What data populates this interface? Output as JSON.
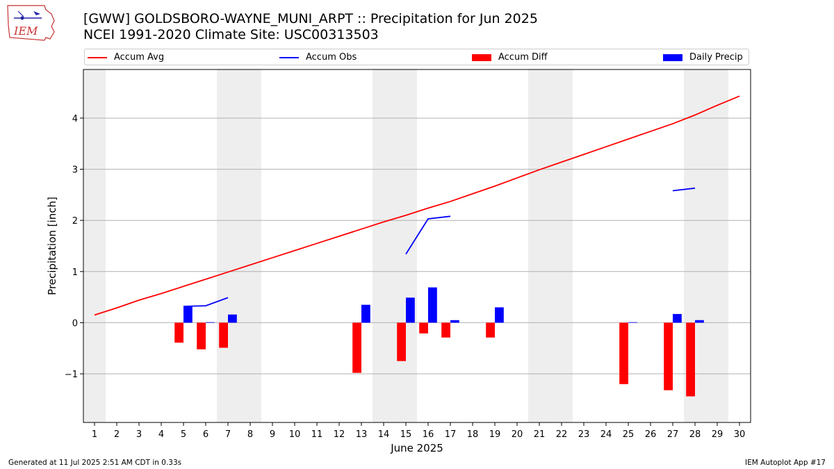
{
  "logo_text": "IEM",
  "title": "[GWW] GOLDSBORO-WAYNE_MUNI_ARPT :: Precipitation for Jun 2025",
  "subtitle": "NCEI 1991-2020 Climate Site: USC00313503",
  "legend": [
    {
      "label": "Accum Avg",
      "kind": "line",
      "color": "#ff0000"
    },
    {
      "label": "Accum Obs",
      "kind": "line",
      "color": "#0000ff"
    },
    {
      "label": "Accum Diff",
      "kind": "box",
      "color": "#ff0000"
    },
    {
      "label": "Daily Precip",
      "kind": "box",
      "color": "#0000ff"
    }
  ],
  "footer": {
    "left": "Generated at 11 Jul 2025 2:51 AM CDT in 0.33s",
    "right": "IEM Autoplot App #17"
  },
  "chart_data": {
    "type": "bar",
    "xlabel": "June 2025",
    "ylabel": "Precipitation [inch]",
    "xlim": [
      0.5,
      30.5
    ],
    "ylim": [
      -1.95,
      4.95
    ],
    "x_ticks": [
      1,
      2,
      3,
      4,
      5,
      6,
      7,
      8,
      9,
      10,
      11,
      12,
      13,
      14,
      15,
      16,
      17,
      18,
      19,
      20,
      21,
      22,
      23,
      24,
      25,
      26,
      27,
      28,
      29,
      30
    ],
    "y_ticks": [
      -1,
      0,
      1,
      2,
      3,
      4
    ],
    "y_tick_labels": [
      "−1",
      "0",
      "1",
      "2",
      "3",
      "4"
    ],
    "grid": "horizontal",
    "weekend_shading": [
      [
        0.5,
        1.5
      ],
      [
        6.5,
        8.5
      ],
      [
        13.5,
        15.5
      ],
      [
        20.5,
        22.5
      ],
      [
        27.5,
        29.5
      ]
    ],
    "colors": {
      "avg": "#ff0000",
      "obs": "#0000ff",
      "diff": "#ff0000",
      "daily": "#0000ff",
      "shade": "#eeeeee",
      "grid": "#b0b0b0"
    },
    "accum_avg": {
      "x": [
        1,
        2,
        3,
        4,
        5,
        6,
        7,
        8,
        9,
        10,
        11,
        12,
        13,
        14,
        15,
        16,
        17,
        18,
        19,
        20,
        21,
        22,
        23,
        24,
        25,
        26,
        27,
        28,
        29,
        30
      ],
      "values": [
        0.15,
        0.29,
        0.44,
        0.57,
        0.71,
        0.85,
        0.99,
        1.13,
        1.27,
        1.41,
        1.55,
        1.69,
        1.83,
        1.97,
        2.1,
        2.24,
        2.37,
        2.52,
        2.67,
        2.83,
        2.99,
        3.14,
        3.29,
        3.44,
        3.59,
        3.74,
        3.89,
        4.06,
        4.25,
        4.43
      ]
    },
    "accum_obs": [
      {
        "x": [
          5,
          6,
          7
        ],
        "values": [
          0.32,
          0.33,
          0.49
        ]
      },
      {
        "x": [
          15,
          16,
          17
        ],
        "values": [
          1.34,
          2.03,
          2.08
        ]
      },
      {
        "x": [
          27,
          28
        ],
        "values": [
          2.58,
          2.63
        ]
      }
    ],
    "daily_precip": {
      "x": [
        5,
        6,
        7,
        13,
        15,
        16,
        17,
        19,
        25,
        27,
        28
      ],
      "values": [
        0.32,
        0.01,
        0.16,
        0.35,
        0.49,
        0.69,
        0.05,
        0.3,
        0.01,
        0.17,
        0.05
      ]
    },
    "accum_diff": {
      "x": [
        5,
        6,
        7,
        13,
        15,
        16,
        17,
        19,
        25,
        27,
        28
      ],
      "values": [
        -0.39,
        -0.52,
        -0.49,
        -0.98,
        -0.75,
        -0.21,
        -0.29,
        -0.29,
        -1.2,
        -1.32,
        -1.44
      ]
    }
  }
}
